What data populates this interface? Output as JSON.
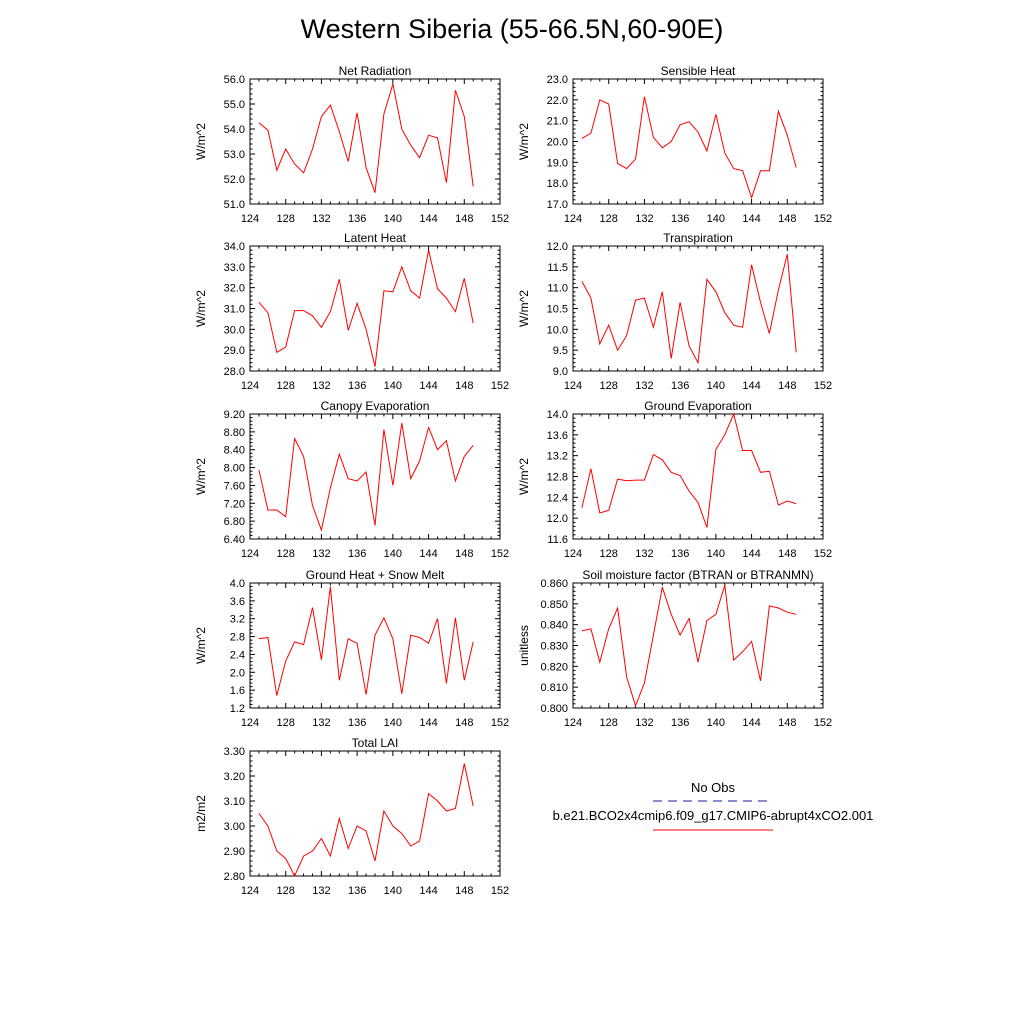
{
  "title": "Western Siberia (55-66.5N,60-90E)",
  "legend": {
    "entries": [
      {
        "label": "No Obs",
        "color": "#1a1aa0",
        "dash": true
      },
      {
        "label": "b.e21.BCO2x4cmip6.f09_g17.CMIP6-abrupt4xCO2.001",
        "color": "#ff0000",
        "dash": false
      }
    ]
  },
  "colors": {
    "series": "#ff0000",
    "axis": "#000000"
  },
  "chart_data": [
    {
      "type": "line",
      "title": "Net Radiation",
      "ylabel": "W/m^2",
      "xlim": [
        124,
        152
      ],
      "ylim": [
        51.0,
        56.0
      ],
      "xticks": [
        124,
        128,
        132,
        136,
        140,
        144,
        148,
        152
      ],
      "yticks": [
        "51.0",
        "52.0",
        "53.0",
        "54.0",
        "55.0",
        "56.0"
      ],
      "x": [
        125,
        126,
        127,
        128,
        129,
        130,
        131,
        132,
        133,
        134,
        135,
        136,
        137,
        138,
        139,
        140,
        141,
        142,
        143,
        144,
        145,
        146,
        147,
        148,
        149
      ],
      "values": [
        54.25,
        53.95,
        52.35,
        53.2,
        52.6,
        52.25,
        53.2,
        54.5,
        54.95,
        53.9,
        52.7,
        54.65,
        52.45,
        51.45,
        54.6,
        55.8,
        54.0,
        53.35,
        52.85,
        53.75,
        53.65,
        51.85,
        55.55,
        54.5,
        51.7
      ]
    },
    {
      "type": "line",
      "title": "Sensible Heat",
      "ylabel": "W/m^2",
      "xlim": [
        124,
        152
      ],
      "ylim": [
        17.0,
        23.0
      ],
      "xticks": [
        124,
        128,
        132,
        136,
        140,
        144,
        148,
        152
      ],
      "yticks": [
        "17.0",
        "18.0",
        "19.0",
        "20.0",
        "21.0",
        "22.0",
        "23.0"
      ],
      "x": [
        125,
        126,
        127,
        128,
        129,
        130,
        131,
        132,
        133,
        134,
        135,
        136,
        137,
        138,
        139,
        140,
        141,
        142,
        143,
        144,
        145,
        146,
        147,
        148,
        149
      ],
      "values": [
        20.15,
        20.4,
        22.0,
        21.8,
        18.95,
        18.7,
        19.15,
        22.15,
        20.2,
        19.7,
        20.0,
        20.8,
        20.95,
        20.45,
        19.55,
        21.3,
        19.45,
        18.7,
        18.6,
        17.3,
        18.6,
        18.6,
        21.45,
        20.3,
        18.75
      ]
    },
    {
      "type": "line",
      "title": "Latent Heat",
      "ylabel": "W/m^2",
      "xlim": [
        124,
        152
      ],
      "ylim": [
        28.0,
        34.0
      ],
      "xticks": [
        124,
        128,
        132,
        136,
        140,
        144,
        148,
        152
      ],
      "yticks": [
        "28.0",
        "29.0",
        "30.0",
        "31.0",
        "32.0",
        "33.0",
        "34.0"
      ],
      "x": [
        125,
        126,
        127,
        128,
        129,
        130,
        131,
        132,
        133,
        134,
        135,
        136,
        137,
        138,
        139,
        140,
        141,
        142,
        143,
        144,
        145,
        146,
        147,
        148,
        149
      ],
      "values": [
        31.3,
        30.8,
        28.9,
        29.15,
        30.9,
        30.9,
        30.65,
        30.1,
        30.85,
        32.4,
        29.95,
        31.25,
        30.0,
        28.2,
        31.85,
        31.8,
        33.0,
        31.85,
        31.5,
        33.8,
        31.95,
        31.5,
        30.85,
        32.45,
        30.3
      ]
    },
    {
      "type": "line",
      "title": "Transpiration",
      "ylabel": "W/m^2",
      "xlim": [
        124,
        152
      ],
      "ylim": [
        9.0,
        12.0
      ],
      "xticks": [
        124,
        128,
        132,
        136,
        140,
        144,
        148,
        152
      ],
      "yticks": [
        "9.0",
        "9.5",
        "10.0",
        "10.5",
        "11.0",
        "11.5",
        "12.0"
      ],
      "x": [
        125,
        126,
        127,
        128,
        129,
        130,
        131,
        132,
        133,
        134,
        135,
        136,
        137,
        138,
        139,
        140,
        141,
        142,
        143,
        144,
        145,
        146,
        147,
        148,
        149
      ],
      "values": [
        11.15,
        10.75,
        9.65,
        10.1,
        9.5,
        9.85,
        10.7,
        10.75,
        10.05,
        10.9,
        9.3,
        10.65,
        9.6,
        9.2,
        11.2,
        10.9,
        10.4,
        10.1,
        10.05,
        11.55,
        10.65,
        9.9,
        10.95,
        11.8,
        9.45
      ]
    },
    {
      "type": "line",
      "title": "Canopy Evaporation",
      "ylabel": "W/m^2",
      "xlim": [
        124,
        152
      ],
      "ylim": [
        6.4,
        9.2
      ],
      "xticks": [
        124,
        128,
        132,
        136,
        140,
        144,
        148,
        152
      ],
      "yticks": [
        "6.40",
        "6.80",
        "7.20",
        "7.60",
        "8.00",
        "8.40",
        "8.80",
        "9.20"
      ],
      "x": [
        125,
        126,
        127,
        128,
        129,
        130,
        131,
        132,
        133,
        134,
        135,
        136,
        137,
        138,
        139,
        140,
        141,
        142,
        143,
        144,
        145,
        146,
        147,
        148,
        149
      ],
      "values": [
        7.95,
        7.05,
        7.05,
        6.9,
        8.65,
        8.25,
        7.15,
        6.6,
        7.55,
        8.3,
        7.75,
        7.7,
        7.9,
        6.7,
        8.85,
        7.6,
        9.0,
        7.75,
        8.15,
        8.9,
        8.4,
        8.6,
        7.7,
        8.25,
        8.5
      ]
    },
    {
      "type": "line",
      "title": "Ground Evaporation",
      "ylabel": "W/m^2",
      "xlim": [
        124,
        152
      ],
      "ylim": [
        11.6,
        14.0
      ],
      "xticks": [
        124,
        128,
        132,
        136,
        140,
        144,
        148,
        152
      ],
      "yticks": [
        "11.6",
        "12.0",
        "12.4",
        "12.8",
        "13.2",
        "13.6",
        "14.0"
      ],
      "x": [
        125,
        126,
        127,
        128,
        129,
        130,
        131,
        132,
        133,
        134,
        135,
        136,
        137,
        138,
        139,
        140,
        141,
        142,
        143,
        144,
        145,
        146,
        147,
        148,
        149
      ],
      "values": [
        12.2,
        12.95,
        12.1,
        12.15,
        12.75,
        12.72,
        12.73,
        12.73,
        13.22,
        13.12,
        12.88,
        12.82,
        12.52,
        12.3,
        11.82,
        13.32,
        13.6,
        14.0,
        13.3,
        13.3,
        12.88,
        12.9,
        12.25,
        12.33,
        12.28
      ]
    },
    {
      "type": "line",
      "title": "Ground Heat + Snow Melt",
      "ylabel": "W/m^2",
      "xlim": [
        124,
        152
      ],
      "ylim": [
        1.2,
        4.0
      ],
      "xticks": [
        124,
        128,
        132,
        136,
        140,
        144,
        148,
        152
      ],
      "yticks": [
        "1.2",
        "1.6",
        "2.0",
        "2.4",
        "2.8",
        "3.2",
        "3.6",
        "4.0"
      ],
      "x": [
        125,
        126,
        127,
        128,
        129,
        130,
        131,
        132,
        133,
        134,
        135,
        136,
        137,
        138,
        139,
        140,
        141,
        142,
        143,
        144,
        145,
        146,
        147,
        148,
        149
      ],
      "values": [
        2.75,
        2.78,
        1.48,
        2.25,
        2.68,
        2.62,
        3.45,
        2.28,
        3.92,
        1.82,
        2.75,
        2.65,
        1.5,
        2.83,
        3.22,
        2.75,
        1.52,
        2.83,
        2.78,
        2.65,
        3.2,
        1.75,
        3.22,
        1.82,
        2.68
      ]
    },
    {
      "type": "line",
      "title": "Soil moisture factor (BTRAN or BTRANMN)",
      "ylabel": "unitless",
      "xlim": [
        124,
        152
      ],
      "ylim": [
        0.8,
        0.86
      ],
      "xticks": [
        124,
        128,
        132,
        136,
        140,
        144,
        148,
        152
      ],
      "yticks": [
        "0.800",
        "0.810",
        "0.820",
        "0.830",
        "0.840",
        "0.850",
        "0.860"
      ],
      "x": [
        125,
        126,
        127,
        128,
        129,
        130,
        131,
        132,
        133,
        134,
        135,
        136,
        137,
        138,
        139,
        140,
        141,
        142,
        143,
        144,
        145,
        146,
        147,
        148,
        149
      ],
      "values": [
        0.837,
        0.838,
        0.822,
        0.838,
        0.848,
        0.815,
        0.801,
        0.812,
        0.835,
        0.858,
        0.845,
        0.835,
        0.843,
        0.822,
        0.842,
        0.845,
        0.859,
        0.823,
        0.827,
        0.832,
        0.813,
        0.849,
        0.848,
        0.846,
        0.845
      ]
    },
    {
      "type": "line",
      "title": "Total LAI",
      "ylabel": "m2/m2",
      "xlim": [
        124,
        152
      ],
      "ylim": [
        2.8,
        3.3
      ],
      "xticks": [
        124,
        128,
        132,
        136,
        140,
        144,
        148,
        152
      ],
      "yticks": [
        "2.80",
        "2.90",
        "3.00",
        "3.10",
        "3.20",
        "3.30"
      ],
      "x": [
        125,
        126,
        127,
        128,
        129,
        130,
        131,
        132,
        133,
        134,
        135,
        136,
        137,
        138,
        139,
        140,
        141,
        142,
        143,
        144,
        145,
        146,
        147,
        148,
        149
      ],
      "values": [
        3.05,
        3.0,
        2.9,
        2.87,
        2.8,
        2.88,
        2.9,
        2.95,
        2.88,
        3.03,
        2.91,
        3.0,
        2.98,
        2.86,
        3.06,
        3.0,
        2.97,
        2.92,
        2.94,
        3.13,
        3.1,
        3.06,
        3.07,
        3.25,
        3.08
      ]
    }
  ]
}
